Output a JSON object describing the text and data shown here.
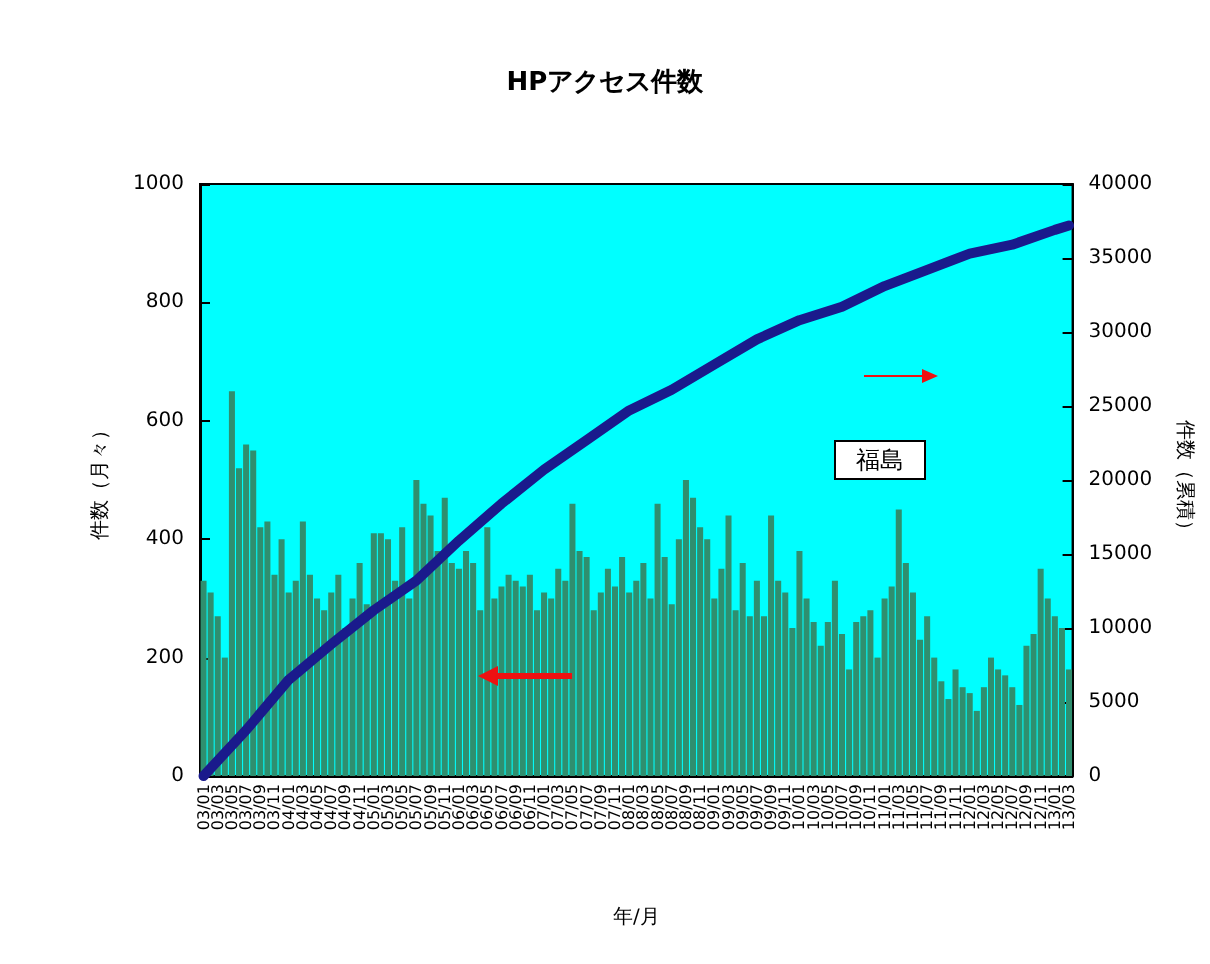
{
  "chart_data": {
    "type": "bar",
    "title": "HPアクセス件数",
    "xlabel": "年/月",
    "ylabel": "件数（月々）",
    "y2label": "件数（累積）",
    "categories": [
      "03/01",
      null,
      "03/03",
      null,
      "03/05",
      null,
      "03/07",
      null,
      "03/09",
      null,
      "03/11",
      null,
      "04/01",
      null,
      "04/03",
      null,
      "04/05",
      null,
      "04/07",
      null,
      "04/09",
      null,
      "04/11",
      null,
      "05/01",
      null,
      "05/03",
      null,
      "05/05",
      null,
      "05/07",
      null,
      "05/09",
      null,
      "05/11",
      null,
      "06/01",
      null,
      "06/03",
      null,
      "06/05",
      null,
      "06/07",
      null,
      "06/09",
      null,
      "06/11",
      null,
      "07/01",
      null,
      "07/03",
      null,
      "07/05",
      null,
      "07/07",
      null,
      "07/09",
      null,
      "07/11",
      null,
      "08/01",
      null,
      "08/03",
      null,
      "08/05",
      null,
      "08/07",
      null,
      "08/09",
      null,
      "08/11",
      null,
      "09/01",
      null,
      "09/03",
      null,
      "09/05",
      null,
      "09/07",
      null,
      "09/09",
      null,
      "09/11",
      null,
      "10/01",
      null,
      "10/03",
      null,
      "10/05",
      null,
      "10/07",
      null,
      "10/09",
      null,
      "10/11",
      null,
      "11/01",
      null,
      "11/03",
      null,
      "11/05",
      null,
      "11/07",
      null,
      "11/09",
      null,
      "11/11",
      null,
      "12/01",
      null,
      "12/03",
      null,
      "12/05",
      null,
      "12/07",
      null,
      "12/09",
      null,
      "12/11",
      null,
      "13/01",
      null,
      "13/03"
    ],
    "series": [
      {
        "color": "#2f8f6f",
        "values": [
          330,
          310,
          270,
          200,
          650,
          520,
          560,
          550,
          420,
          430,
          340,
          400,
          310,
          330,
          430,
          340,
          300,
          280,
          310,
          340,
          250,
          300,
          360,
          290,
          410,
          410,
          400,
          330,
          420,
          300,
          500,
          460,
          440,
          380,
          470,
          360,
          350,
          380,
          360,
          280,
          420,
          300,
          320,
          340,
          330,
          320,
          340,
          280,
          310,
          300,
          350,
          330,
          460,
          380,
          370,
          280,
          310,
          350,
          320,
          370,
          310,
          330,
          360,
          300,
          460,
          370,
          290,
          400,
          500,
          470,
          420,
          400,
          300,
          350,
          440,
          280,
          360,
          270,
          330,
          270,
          440,
          330,
          310,
          250,
          380,
          300,
          260,
          220,
          260,
          330,
          240,
          180,
          260,
          270,
          280,
          200,
          300,
          320,
          450,
          360,
          310,
          230,
          270,
          200,
          160,
          130,
          180,
          150,
          140,
          110,
          150,
          200,
          180,
          170,
          150,
          120,
          220,
          240,
          350,
          300,
          270,
          250,
          180
        ]
      },
      {
        "type": "line",
        "axis": "y2",
        "color": "#1a1a8c",
        "x": [
          "03/01",
          "03/07",
          "04/01",
          "04/07",
          "05/01",
          "05/07",
          "06/01",
          "06/07",
          "07/01",
          "07/07",
          "08/01",
          "08/07",
          "09/01",
          "09/07",
          "10/01",
          "10/07",
          "11/01",
          "11/07",
          "12/01",
          "12/07",
          "13/01",
          "13/03"
        ],
        "values": [
          0,
          3100,
          6500,
          8900,
          11200,
          13200,
          15900,
          18400,
          20700,
          22700,
          24700,
          26100,
          27800,
          29500,
          30800,
          31700,
          33100,
          34200,
          35300,
          35900,
          36900,
          37200
        ]
      }
    ],
    "ylim": [
      0,
      1000
    ],
    "yticks": [
      0,
      200,
      400,
      600,
      800,
      1000
    ],
    "y2lim": [
      0,
      40000
    ],
    "y2ticks": [
      0,
      5000,
      10000,
      15000,
      20000,
      25000,
      30000,
      35000,
      40000
    ],
    "annotations": [
      "福島"
    ],
    "grid": false,
    "marker": "none",
    "line_style": "solid"
  }
}
